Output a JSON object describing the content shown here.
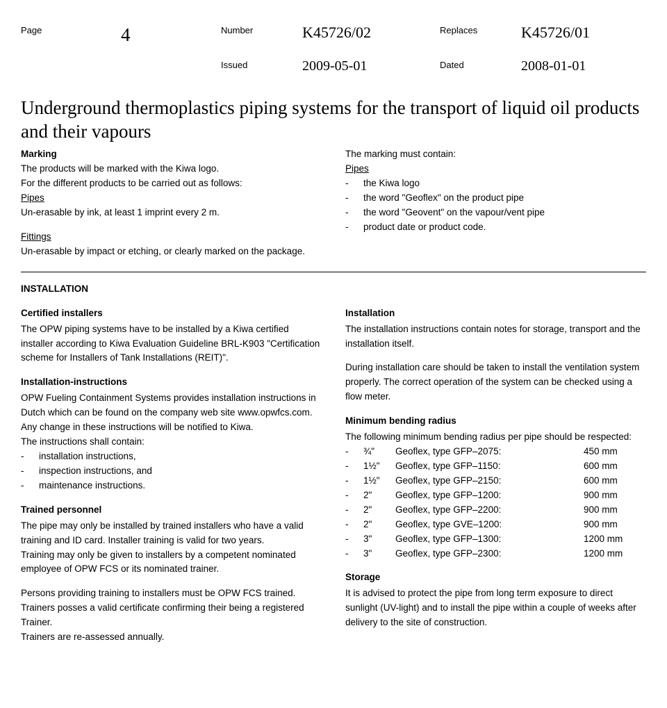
{
  "header": {
    "page_label": "Page",
    "page_value": "4",
    "number_label": "Number",
    "number_value": "K45726/02",
    "replaces_label": "Replaces",
    "replaces_value": "K45726/01",
    "issued_label": "Issued",
    "issued_value": "2009-05-01",
    "dated_label": "Dated",
    "dated_value": "2008-01-01"
  },
  "title": "Underground thermoplastics piping systems for the transport of liquid oil products and their vapours",
  "marking": {
    "left": {
      "heading": "Marking",
      "line1": "The products will be marked with the Kiwa logo.",
      "line2": "For the different products to be carried out as follows:",
      "pipes_label": "Pipes",
      "pipes_text": "Un-erasable by ink, at least 1 imprint every 2 m.",
      "fittings_label": "Fittings",
      "fittings_text": "Un-erasable by impact or etching, or clearly marked on the package."
    },
    "right": {
      "intro": "The marking must contain:",
      "pipes_label": "Pipes",
      "items": [
        "the Kiwa logo",
        "the word \"Geoflex\" on the product pipe",
        "the word \"Geovent\" on the vapour/vent pipe",
        "product date or product code."
      ]
    }
  },
  "installation": {
    "heading": "INSTALLATION",
    "left": {
      "certified_heading": "Certified installers",
      "certified_text": "The OPW piping systems have to be installed by a Kiwa certified installer according to Kiwa Evaluation Guideline BRL-K903 \"Certification scheme for Installers of Tank Installations (REIT)\".",
      "instr_heading": "Installation-instructions",
      "instr_text1": "OPW Fueling Containment Systems provides installation instructions in Dutch which can be found on the company web site www.opwfcs.com.",
      "instr_text2": "Any change in these instructions will be notified to Kiwa.",
      "instr_text3": "The instructions shall contain:",
      "instr_items": [
        "installation instructions,",
        "inspection instructions, and",
        "maintenance instructions."
      ],
      "trained_heading": "Trained personnel",
      "trained_text1": "The pipe may only be installed by trained installers who have a valid training and ID card. Installer training is valid for two years.",
      "trained_text2": "Training may only be given to installers by a competent nominated employee of OPW FCS or its nominated trainer.",
      "trained_text3": "Persons providing training to installers must be OPW FCS trained.",
      "trained_text4": "Trainers posses a valid certificate confirming their being a registered Trainer.",
      "trained_text5": "Trainers are re-assessed annually."
    },
    "right": {
      "install_heading": "Installation",
      "install_text1": "The installation instructions contain notes for storage, transport and the installation itself.",
      "install_text2": "During installation care should be taken to install the ventilation system properly. The correct operation of the system can be checked using a flow meter.",
      "bend_heading": "Minimum bending radius",
      "bend_intro": "The following minimum bending radius per pipe should be respected:",
      "bend_rows": [
        {
          "size": "¾\"",
          "type": "Geoflex, type GFP–2075:",
          "value": "450 mm"
        },
        {
          "size": "1½\"",
          "type": "Geoflex, type GFP–1150:",
          "value": "600 mm"
        },
        {
          "size": "1½\"",
          "type": "Geoflex, type GFP–2150:",
          "value": "600 mm"
        },
        {
          "size": "2\"",
          "type": "Geoflex, type GFP–1200:",
          "value": "900 mm"
        },
        {
          "size": "2\"",
          "type": "Geoflex, type GFP–2200:",
          "value": "900 mm"
        },
        {
          "size": "2\"",
          "type": "Geoflex, type GVE–1200:",
          "value": "900 mm"
        },
        {
          "size": "3\"",
          "type": "Geoflex, type GFP–1300:",
          "value": "1200 mm"
        },
        {
          "size": "3\"",
          "type": "Geoflex, type GFP–2300:",
          "value": "1200 mm"
        }
      ],
      "storage_heading": "Storage",
      "storage_text": "It is advised to protect the pipe from long term exposure to direct sunlight (UV-light) and to install the pipe within a couple of weeks after delivery to the site of construction."
    }
  }
}
